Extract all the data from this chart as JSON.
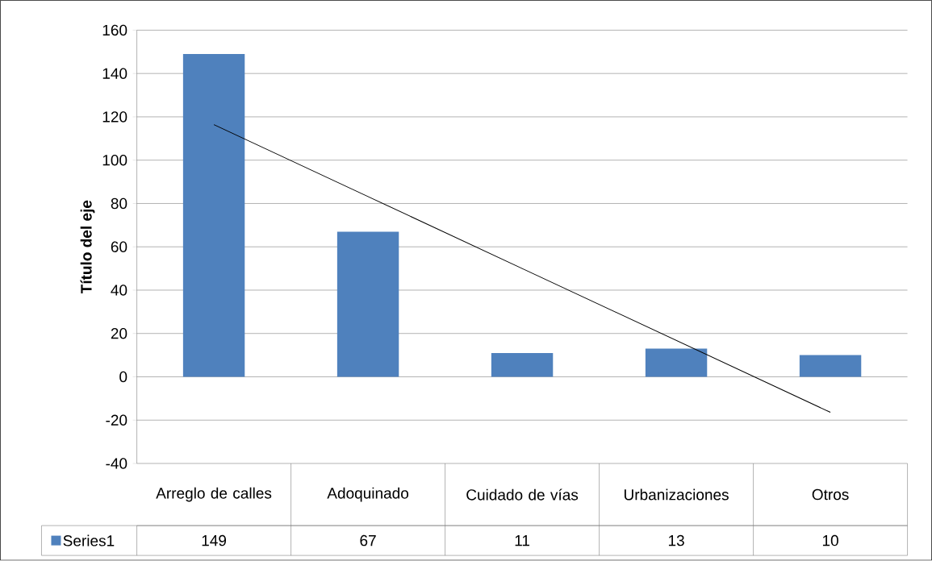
{
  "chart_data": {
    "type": "bar",
    "ylabel": "Título del eje",
    "categories": [
      "Arreglo de calles",
      "Adoquinado",
      "Cuidado de vías",
      "Urbanizaciones",
      "Otros"
    ],
    "series": [
      {
        "name": "Series1",
        "color": "#4f81bd",
        "values": [
          149,
          67,
          11,
          13,
          10
        ],
        "value_labels": [
          "149",
          "67",
          "11",
          "13",
          "10"
        ]
      },
      {
        "type": "line",
        "color": "#000000",
        "values": [
          116.4,
          83.2,
          50,
          16.8,
          -16.4
        ]
      }
    ],
    "ylim": [
      -40,
      160
    ],
    "yticks": [
      -40,
      -20,
      0,
      20,
      40,
      60,
      80,
      100,
      120,
      140,
      160
    ],
    "grid": "y"
  }
}
